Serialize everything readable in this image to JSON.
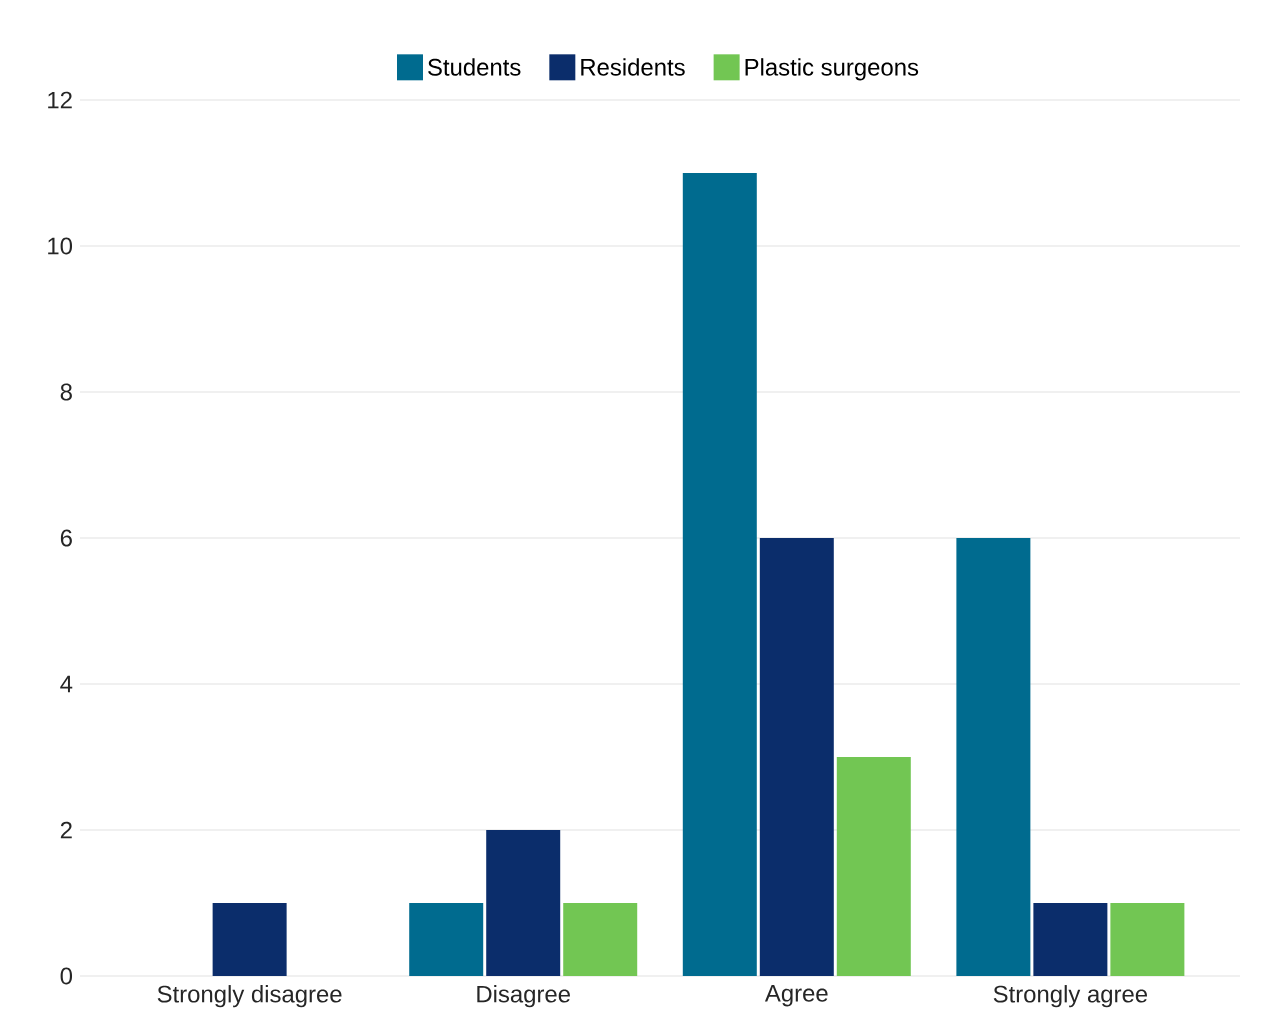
{
  "chart_data": {
    "type": "bar",
    "categories": [
      "Strongly disagree",
      "Disagree",
      "Agree",
      "Strongly agree"
    ],
    "series": [
      {
        "name": "Students",
        "color": "#006b8f",
        "values": [
          0,
          1,
          11,
          6
        ]
      },
      {
        "name": "Residents",
        "color": "#0b2d6b",
        "values": [
          1,
          2,
          6,
          1
        ]
      },
      {
        "name": "Plastic surgeons",
        "color": "#72c653",
        "values": [
          0,
          1,
          3,
          1
        ]
      }
    ],
    "ylim": [
      0,
      12
    ],
    "yticks": [
      0,
      2,
      4,
      6,
      8,
      10,
      12
    ],
    "grid": "y",
    "legend": "top"
  }
}
